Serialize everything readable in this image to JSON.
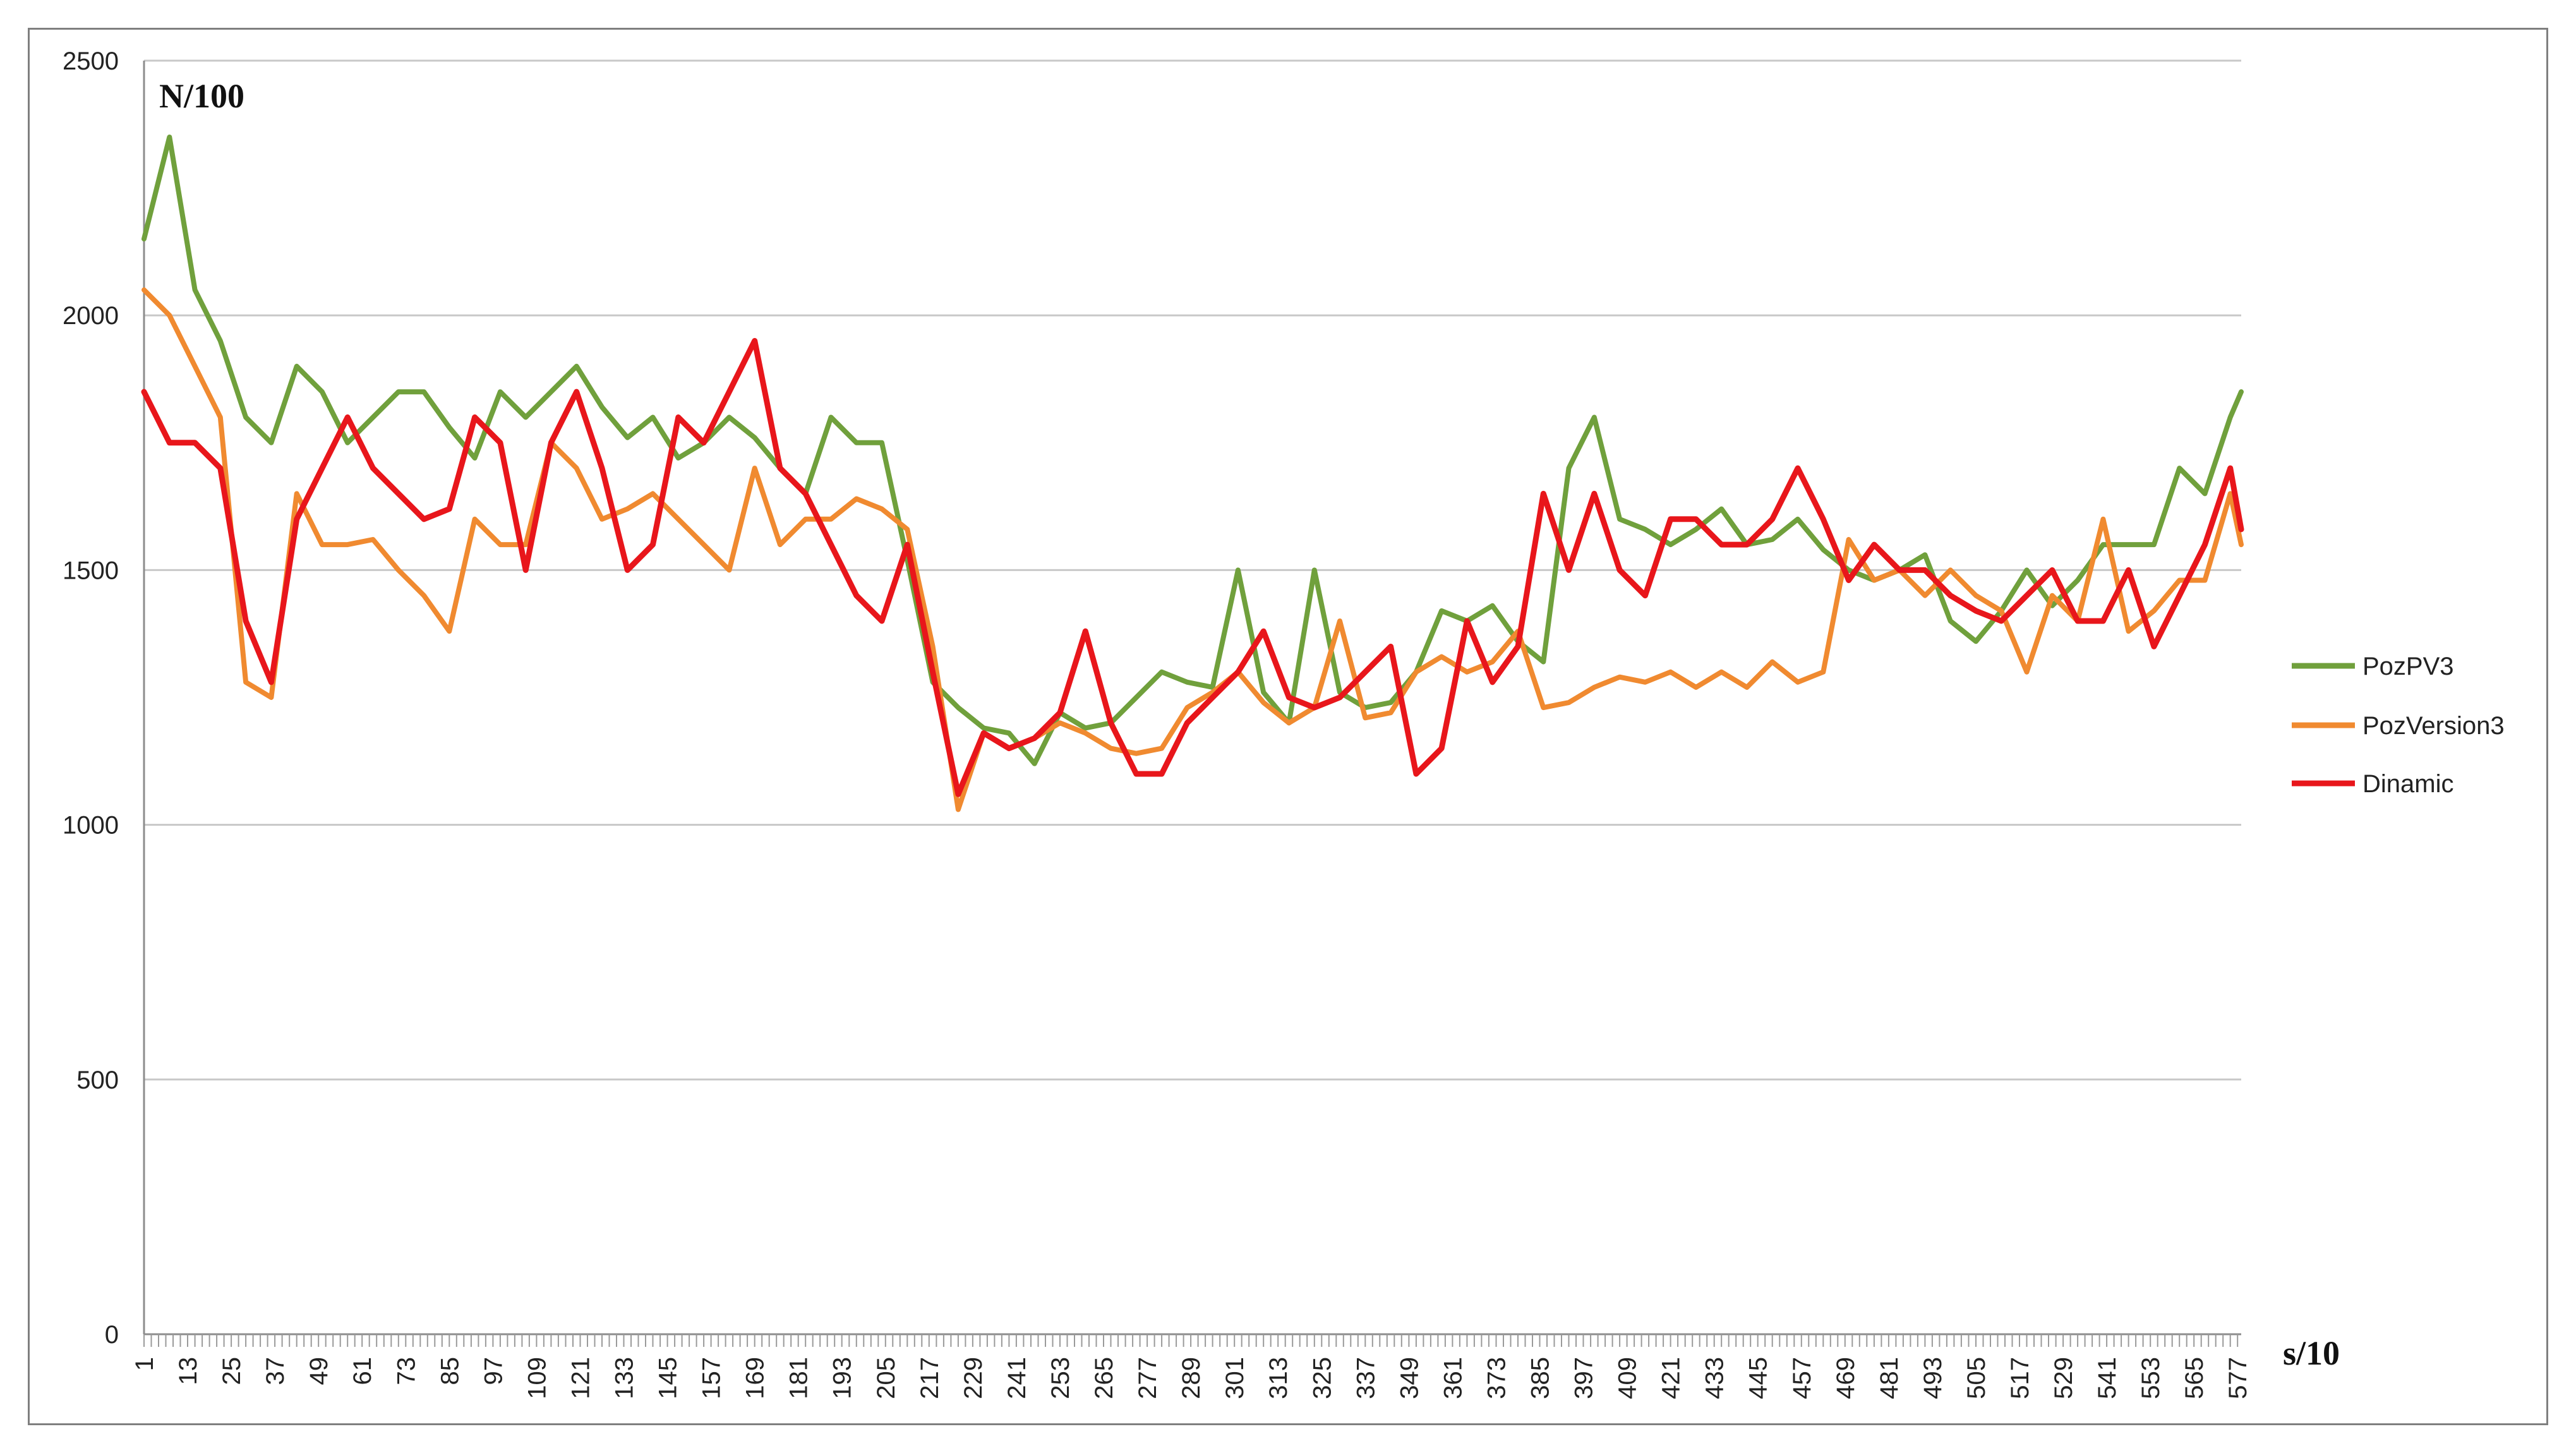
{
  "chart_data": {
    "type": "line",
    "title": "",
    "ylabel": "N/100",
    "xlabel": "s/10",
    "ylim": [
      0,
      2500
    ],
    "yticks": [
      0,
      500,
      1000,
      1500,
      2000,
      2500
    ],
    "x_range": [
      1,
      578
    ],
    "x_tick_labels": [
      1,
      13,
      25,
      37,
      49,
      61,
      73,
      85,
      97,
      109,
      121,
      133,
      145,
      157,
      169,
      181,
      193,
      205,
      217,
      229,
      241,
      253,
      265,
      277,
      289,
      301,
      313,
      325,
      337,
      349,
      361,
      373,
      385,
      397,
      409,
      421,
      433,
      445,
      457,
      469,
      481,
      493,
      505,
      517,
      529,
      541,
      553,
      565,
      577
    ],
    "grid": "horizontal",
    "legend_position": "right",
    "x": [
      1,
      8,
      15,
      22,
      29,
      36,
      43,
      50,
      57,
      64,
      71,
      78,
      85,
      92,
      99,
      106,
      113,
      120,
      127,
      134,
      141,
      148,
      155,
      162,
      169,
      176,
      183,
      190,
      197,
      204,
      211,
      218,
      225,
      232,
      239,
      246,
      253,
      260,
      267,
      274,
      281,
      288,
      295,
      302,
      309,
      316,
      323,
      330,
      337,
      344,
      351,
      358,
      365,
      372,
      379,
      386,
      393,
      400,
      407,
      414,
      421,
      428,
      435,
      442,
      449,
      456,
      463,
      470,
      477,
      484,
      491,
      498,
      505,
      512,
      519,
      526,
      533,
      540,
      547,
      554,
      561,
      568,
      575,
      578
    ],
    "series": [
      {
        "name": "PozPV3",
        "color": "#70a03c",
        "values": [
          2150,
          2350,
          2050,
          1950,
          1800,
          1750,
          1900,
          1850,
          1750,
          1800,
          1850,
          1850,
          1780,
          1720,
          1850,
          1800,
          1850,
          1900,
          1820,
          1760,
          1800,
          1720,
          1750,
          1800,
          1760,
          1700,
          1650,
          1800,
          1750,
          1750,
          1520,
          1280,
          1230,
          1190,
          1180,
          1120,
          1220,
          1190,
          1200,
          1250,
          1300,
          1280,
          1270,
          1500,
          1260,
          1200,
          1500,
          1260,
          1230,
          1240,
          1300,
          1420,
          1400,
          1430,
          1360,
          1320,
          1700,
          1800,
          1600,
          1580,
          1550,
          1580,
          1620,
          1550,
          1560,
          1600,
          1540,
          1500,
          1480,
          1500,
          1530,
          1400,
          1360,
          1420,
          1500,
          1430,
          1480,
          1550,
          1550,
          1550,
          1700,
          1650,
          1800,
          1850
        ]
      },
      {
        "name": "PozVersion3",
        "color": "#f08a30",
        "values": [
          2050,
          2000,
          1900,
          1800,
          1280,
          1250,
          1650,
          1550,
          1550,
          1560,
          1500,
          1450,
          1380,
          1600,
          1550,
          1550,
          1750,
          1700,
          1600,
          1620,
          1650,
          1600,
          1550,
          1500,
          1700,
          1550,
          1600,
          1600,
          1640,
          1620,
          1580,
          1350,
          1030,
          1180,
          1150,
          1170,
          1200,
          1180,
          1150,
          1140,
          1150,
          1230,
          1260,
          1300,
          1240,
          1200,
          1230,
          1400,
          1210,
          1220,
          1300,
          1330,
          1300,
          1320,
          1380,
          1230,
          1240,
          1270,
          1290,
          1280,
          1300,
          1270,
          1300,
          1270,
          1320,
          1280,
          1300,
          1560,
          1480,
          1500,
          1450,
          1500,
          1450,
          1420,
          1300,
          1450,
          1400,
          1600,
          1380,
          1420,
          1480,
          1480,
          1650,
          1550
        ]
      },
      {
        "name": "Dinamic",
        "color": "#e8161b",
        "values": [
          1850,
          1750,
          1750,
          1700,
          1400,
          1280,
          1600,
          1700,
          1800,
          1700,
          1650,
          1600,
          1620,
          1800,
          1750,
          1500,
          1750,
          1850,
          1700,
          1500,
          1550,
          1800,
          1750,
          1850,
          1950,
          1700,
          1650,
          1550,
          1450,
          1400,
          1550,
          1300,
          1060,
          1180,
          1150,
          1170,
          1220,
          1380,
          1200,
          1100,
          1100,
          1200,
          1250,
          1300,
          1380,
          1250,
          1230,
          1250,
          1300,
          1350,
          1100,
          1150,
          1400,
          1280,
          1350,
          1650,
          1500,
          1650,
          1500,
          1450,
          1600,
          1600,
          1550,
          1550,
          1600,
          1700,
          1600,
          1480,
          1550,
          1500,
          1500,
          1450,
          1420,
          1400,
          1450,
          1500,
          1400,
          1400,
          1500,
          1350,
          1450,
          1550,
          1700,
          1580
        ]
      }
    ]
  }
}
